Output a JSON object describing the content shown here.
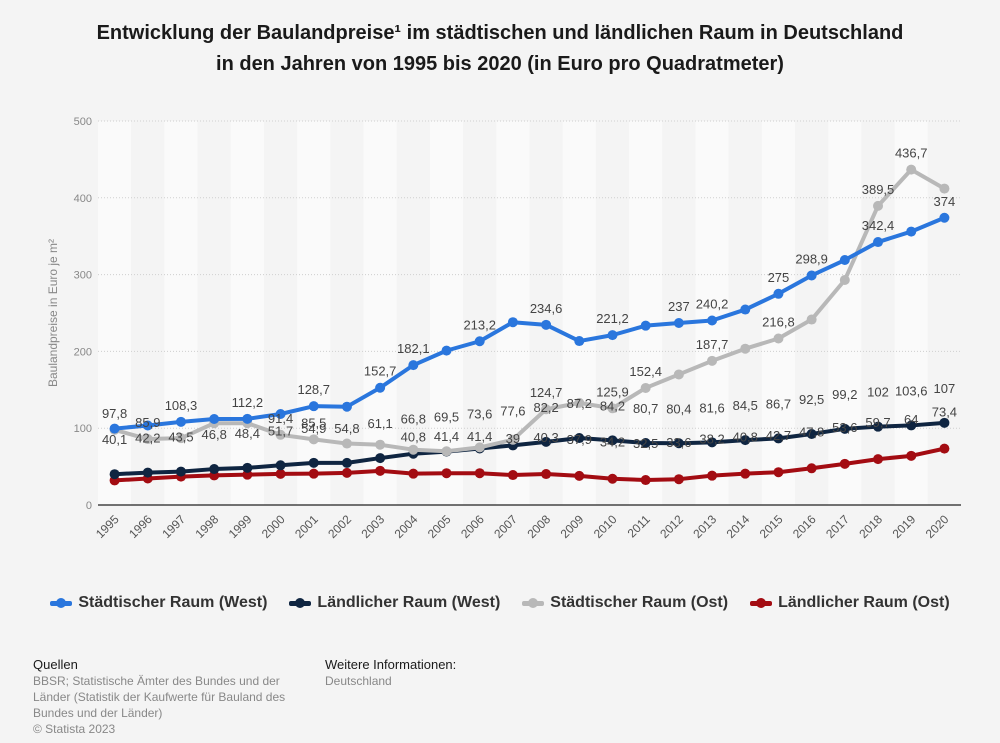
{
  "title_lines": [
    "Entwicklung der Baulandpreise¹ im städtischen und ländlichen Raum in Deutschland",
    "in den Jahren von 1995 bis 2020 (in Euro pro Quadratmeter)"
  ],
  "footer": {
    "sources_heading": "Quellen",
    "sources_lines": [
      "BBSR; Statistische Ämter des Bundes und der",
      "Länder (Statistik der Kaufwerte für Bauland des",
      "Bundes und der Länder)",
      "© Statista 2023"
    ],
    "info_heading": "Weitere Informationen:",
    "info_text": "Deutschland"
  },
  "chart_data": {
    "type": "line",
    "title": "Entwicklung der Baulandpreise¹ im städtischen und ländlichen Raum in Deutschland in den Jahren von 1995 bis 2020 (in Euro pro Quadratmeter)",
    "xlabel": "",
    "ylabel": "Baulandpreise in Euro je m²",
    "ylim": [
      0,
      500
    ],
    "yticks": [
      0,
      100,
      200,
      300,
      400,
      500
    ],
    "grid": true,
    "legend_position": "bottom",
    "x": [
      "1995",
      "1996",
      "1997",
      "1998",
      "1999",
      "2000",
      "2001",
      "2002",
      "2003",
      "2004",
      "2005",
      "2006",
      "2007",
      "2008",
      "2009",
      "2010",
      "2011",
      "2012",
      "2013",
      "2014",
      "2015",
      "2016",
      "2017",
      "2018",
      "2019",
      "2020"
    ],
    "series": [
      {
        "name": "Städtischer Raum (West)",
        "color": "#2a76dd",
        "values": [
          99.5,
          103.5,
          108.3,
          112.0,
          112.2,
          118.5,
          128.7,
          128.0,
          152.7,
          182.1,
          201.0,
          213.2,
          238.0,
          234.6,
          213.5,
          221.2,
          233.5,
          237.0,
          240.2,
          254.5,
          275.0,
          298.9,
          319.0,
          342.4,
          356.0,
          374.0
        ]
      },
      {
        "name": "Ländlicher Raum (West)",
        "color": "#0f2541",
        "values": [
          40.1,
          42.2,
          43.5,
          46.8,
          48.4,
          51.7,
          54.9,
          54.8,
          61.1,
          66.8,
          69.5,
          73.6,
          77.6,
          82.2,
          87.2,
          84.2,
          80.7,
          80.4,
          81.6,
          84.5,
          86.7,
          92.5,
          99.2,
          102.0,
          103.6,
          107.0
        ]
      },
      {
        "name": "Städtischer Raum (Ost)",
        "color": "#b8b8b8",
        "values": [
          97.8,
          85.9,
          87.0,
          106.5,
          106.5,
          91.4,
          85.5,
          80.0,
          78.5,
          72.0,
          70.0,
          75.0,
          85.0,
          124.7,
          133.0,
          125.9,
          152.4,
          170.0,
          187.7,
          203.5,
          216.8,
          241.5,
          293.0,
          389.5,
          436.7,
          412.0
        ]
      },
      {
        "name": "Ländlicher Raum (Ost)",
        "color": "#a30c12",
        "values": [
          32.0,
          34.5,
          37.0,
          38.5,
          39.5,
          40.5,
          40.8,
          41.8,
          44.5,
          40.8,
          41.4,
          41.4,
          39.0,
          40.3,
          37.9,
          34.2,
          32.5,
          33.6,
          38.2,
          40.8,
          42.7,
          47.8,
          53.6,
          59.7,
          64.0,
          73.4
        ]
      }
    ],
    "data_labels": [
      {
        "series": 2,
        "x": "1995",
        "text": "97,8"
      },
      {
        "series": 2,
        "x": "1996",
        "text": "85,9"
      },
      {
        "series": 0,
        "x": "1997",
        "text": "108,3"
      },
      {
        "series": 0,
        "x": "1999",
        "text": "112,2"
      },
      {
        "series": 2,
        "x": "2000",
        "text": "91,4"
      },
      {
        "series": 0,
        "x": "2001",
        "text": "128,7"
      },
      {
        "series": 2,
        "x": "2001",
        "text": "85,5"
      },
      {
        "series": 0,
        "x": "2003",
        "text": "152,7"
      },
      {
        "series": 0,
        "x": "2004",
        "text": "182,1"
      },
      {
        "series": 0,
        "x": "2006",
        "text": "213,2"
      },
      {
        "series": 0,
        "x": "2008",
        "text": "234,6"
      },
      {
        "series": 0,
        "x": "2010",
        "text": "221,2"
      },
      {
        "series": 0,
        "x": "2012",
        "text": "237"
      },
      {
        "series": 0,
        "x": "2013",
        "text": "240,2"
      },
      {
        "series": 0,
        "x": "2015",
        "text": "275"
      },
      {
        "series": 0,
        "x": "2016",
        "text": "298,9"
      },
      {
        "series": 0,
        "x": "2018",
        "text": "342,4"
      },
      {
        "series": 0,
        "x": "2020",
        "text": "374"
      },
      {
        "series": 2,
        "x": "2008",
        "text": "124,7"
      },
      {
        "series": 2,
        "x": "2010",
        "text": "125,9"
      },
      {
        "series": 2,
        "x": "2011",
        "text": "152,4"
      },
      {
        "series": 2,
        "x": "2013",
        "text": "187,7"
      },
      {
        "series": 2,
        "x": "2015",
        "text": "216,8"
      },
      {
        "series": 2,
        "x": "2018",
        "text": "389,5"
      },
      {
        "series": 2,
        "x": "2019",
        "text": "436,7"
      },
      {
        "series": 1,
        "x": "1995",
        "text": "40,1"
      },
      {
        "series": 1,
        "x": "1996",
        "text": "42,2"
      },
      {
        "series": 1,
        "x": "1997",
        "text": "43,5"
      },
      {
        "series": 1,
        "x": "1998",
        "text": "46,8"
      },
      {
        "series": 1,
        "x": "1999",
        "text": "48,4"
      },
      {
        "series": 1,
        "x": "2000",
        "text": "51,7"
      },
      {
        "series": 1,
        "x": "2001",
        "text": "54,9"
      },
      {
        "series": 1,
        "x": "2002",
        "text": "54,8"
      },
      {
        "series": 1,
        "x": "2003",
        "text": "61,1"
      },
      {
        "series": 1,
        "x": "2004",
        "text": "66,8"
      },
      {
        "series": 1,
        "x": "2005",
        "text": "69,5"
      },
      {
        "series": 1,
        "x": "2006",
        "text": "73,6"
      },
      {
        "series": 1,
        "x": "2007",
        "text": "77,6"
      },
      {
        "series": 1,
        "x": "2008",
        "text": "82,2"
      },
      {
        "series": 1,
        "x": "2009",
        "text": "87,2"
      },
      {
        "series": 1,
        "x": "2010",
        "text": "84,2"
      },
      {
        "series": 1,
        "x": "2011",
        "text": "80,7"
      },
      {
        "series": 1,
        "x": "2012",
        "text": "80,4"
      },
      {
        "series": 1,
        "x": "2013",
        "text": "81,6"
      },
      {
        "series": 1,
        "x": "2014",
        "text": "84,5"
      },
      {
        "series": 1,
        "x": "2015",
        "text": "86,7"
      },
      {
        "series": 1,
        "x": "2016",
        "text": "92,5"
      },
      {
        "series": 1,
        "x": "2017",
        "text": "99,2"
      },
      {
        "series": 1,
        "x": "2018",
        "text": "102"
      },
      {
        "series": 1,
        "x": "2019",
        "text": "103,6"
      },
      {
        "series": 1,
        "x": "2020",
        "text": "107"
      },
      {
        "series": 3,
        "x": "2004",
        "text": "40,8"
      },
      {
        "series": 3,
        "x": "2005",
        "text": "41,4"
      },
      {
        "series": 3,
        "x": "2006",
        "text": "41,4"
      },
      {
        "series": 3,
        "x": "2007",
        "text": "39"
      },
      {
        "series": 3,
        "x": "2008",
        "text": "40,3"
      },
      {
        "series": 3,
        "x": "2009",
        "text": "37,9"
      },
      {
        "series": 3,
        "x": "2010",
        "text": "34,2"
      },
      {
        "series": 3,
        "x": "2011",
        "text": "32,5"
      },
      {
        "series": 3,
        "x": "2012",
        "text": "33,6"
      },
      {
        "series": 3,
        "x": "2013",
        "text": "38,2"
      },
      {
        "series": 3,
        "x": "2014",
        "text": "40,8"
      },
      {
        "series": 3,
        "x": "2015",
        "text": "42,7"
      },
      {
        "series": 3,
        "x": "2016",
        "text": "47,8"
      },
      {
        "series": 3,
        "x": "2017",
        "text": "53,6"
      },
      {
        "series": 3,
        "x": "2018",
        "text": "59,7"
      },
      {
        "series": 3,
        "x": "2019",
        "text": "64"
      },
      {
        "series": 3,
        "x": "2020",
        "text": "73,4"
      }
    ]
  }
}
